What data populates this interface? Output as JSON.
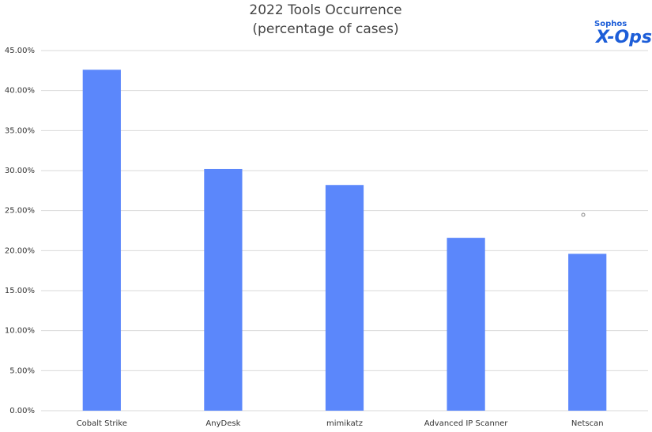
{
  "chart_data": {
    "type": "bar",
    "title": "2022 Tools Occurrence",
    "subtitle": "(percentage of cases)",
    "categories": [
      "Cobalt Strike",
      "AnyDesk",
      "mimikatz",
      "Advanced IP Scanner",
      "Netscan"
    ],
    "values": [
      42.6,
      30.2,
      28.2,
      21.6,
      19.6
    ],
    "color": "#5b87fb",
    "ylim": [
      0,
      45
    ],
    "yticks": [
      {
        "value": 0,
        "label": "0.00%"
      },
      {
        "value": 5,
        "label": "5.00%"
      },
      {
        "value": 10,
        "label": "10.00%"
      },
      {
        "value": 15,
        "label": "15.00%"
      },
      {
        "value": 20,
        "label": "20.00%"
      },
      {
        "value": 25,
        "label": "25.00%"
      },
      {
        "value": 30,
        "label": "30.00%"
      },
      {
        "value": 35,
        "label": "35.00%"
      },
      {
        "value": 40,
        "label": "40.00%"
      },
      {
        "value": 45,
        "label": "45.00%"
      }
    ],
    "grid": true
  },
  "logo": {
    "brand": "Sophos",
    "product": "X-Ops"
  }
}
